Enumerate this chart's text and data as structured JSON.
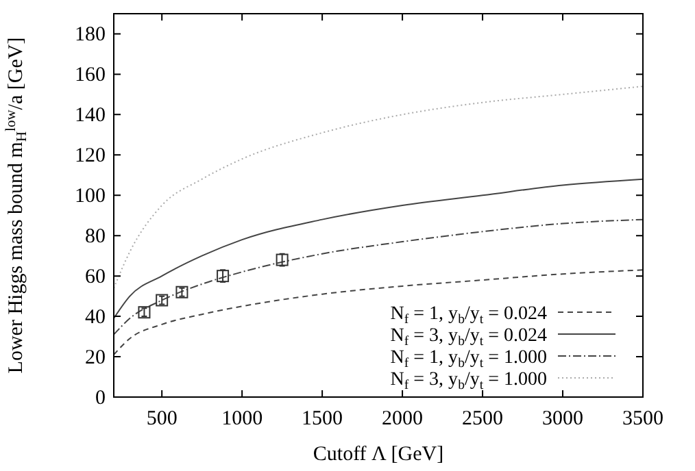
{
  "chart_data": {
    "type": "line",
    "xlabel": "Cutoff Λ [GeV]",
    "ylabel": "Lower Higgs mass bound m$_{H}$$^{low}$/a [GeV]",
    "xlim": [
      200,
      3500
    ],
    "xticks": [
      500,
      1000,
      1500,
      2000,
      2500,
      3000,
      3500
    ],
    "ylim": [
      0,
      190
    ],
    "yticks": [
      0,
      20,
      40,
      60,
      80,
      100,
      120,
      140,
      160,
      180
    ],
    "grid": false,
    "legend": "bottom right",
    "series": [
      {
        "name": "N$_{f}$ = 1, y$_{b}$/y$_{t}$ = 0.024",
        "color": "#444444",
        "line_style": "dashed",
        "x": [
          200,
          300,
          500,
          750,
          1000,
          1500,
          2000,
          2500,
          3000,
          3500
        ],
        "values": [
          21,
          29,
          36,
          41,
          45,
          51,
          55,
          58,
          61,
          63
        ]
      },
      {
        "name": "N$_{f}$ = 3, y$_{b}$/y$_{t}$ = 0.024",
        "color": "#444444",
        "line_style": "solid",
        "x": [
          200,
          300,
          500,
          750,
          1000,
          1500,
          2000,
          2500,
          3000,
          3500
        ],
        "values": [
          39,
          50,
          60,
          70,
          78,
          88,
          95,
          100,
          105,
          108
        ]
      },
      {
        "name": "N$_{f}$ = 1, y$_{b}$/y$_{t}$ = 1.000",
        "color": "#444444",
        "line_style": "dashdot",
        "x": [
          200,
          300,
          500,
          750,
          1000,
          1500,
          2000,
          2500,
          3000,
          3500
        ],
        "values": [
          31,
          39,
          48,
          56,
          62,
          71,
          77,
          82,
          86,
          88
        ]
      },
      {
        "name": "N$_{f}$ = 3, y$_{b}$/y$_{t}$ = 1.000",
        "color": "#aaaaaa",
        "line_style": "dotted",
        "x": [
          200,
          300,
          500,
          750,
          1000,
          1500,
          2000,
          2500,
          3000,
          3500
        ],
        "values": [
          54,
          72,
          95,
          108,
          118,
          131,
          140,
          146,
          150,
          154
        ]
      },
      {
        "type": "scatter",
        "color": "#333333",
        "marker": "square",
        "x": [
          390,
          500,
          625,
          880,
          1250
        ],
        "values": [
          42,
          48,
          52,
          60,
          68
        ],
        "errors": [
          2,
          2,
          2,
          3,
          3
        ]
      }
    ]
  }
}
